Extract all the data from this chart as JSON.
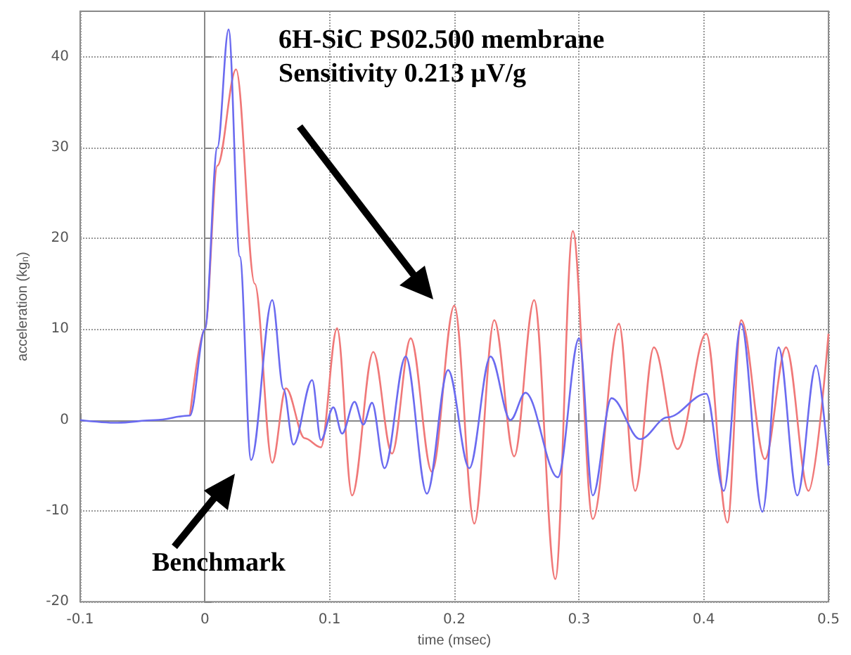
{
  "chart_data": {
    "type": "line",
    "xlabel": "time (msec)",
    "ylabel": "acceleration (kg$_{n}$)",
    "annotations": [
      "6H-SiC PS02.500 membrane",
      "Sensitivity 0.213 μV/g",
      "Benchmark"
    ],
    "xlim": [
      -0.1,
      0.5
    ],
    "xticks": [
      -0.1,
      0,
      0.1,
      0.2,
      0.3,
      0.4,
      0.5
    ],
    "ylim": [
      -20,
      45
    ],
    "yticks": [
      -20,
      -10,
      0,
      10,
      20,
      30,
      40
    ],
    "grid": true,
    "line_style": "solid",
    "marker": "none",
    "series": [
      {
        "color": "#f07878",
        "x": [
          -0.012,
          0,
          0.01,
          0.025,
          0.04,
          0.054,
          0.065,
          0.08,
          0.093,
          0.106,
          0.118,
          0.135,
          0.15,
          0.165,
          0.182,
          0.2,
          0.216,
          0.232,
          0.248,
          0.264,
          0.281,
          0.295,
          0.311,
          0.332,
          0.345,
          0.36,
          0.379,
          0.402,
          0.419,
          0.43,
          0.449,
          0.466,
          0.484,
          0.5
        ],
        "values": [
          0.5,
          10,
          28,
          38.6,
          15,
          -4.7,
          3.5,
          -2,
          -3,
          10.1,
          -8.3,
          7.5,
          -3.7,
          9,
          -5.7,
          12.6,
          -11.4,
          11,
          -4,
          13.2,
          -17.5,
          20.8,
          -10.9,
          10.6,
          -7.8,
          8,
          -3.2,
          9.5,
          -11.3,
          11,
          -4.3,
          8,
          -7.8,
          9.5
        ]
      },
      {
        "color": "#6b6bf0",
        "x": [
          -0.1,
          -0.07,
          -0.04,
          -0.012,
          0,
          0.01,
          0.019,
          0.028,
          0.037,
          0.054,
          0.063,
          0.071,
          0.086,
          0.093,
          0.103,
          0.11,
          0.12,
          0.127,
          0.134,
          0.144,
          0.161,
          0.178,
          0.195,
          0.212,
          0.229,
          0.245,
          0.257,
          0.283,
          0.3,
          0.311,
          0.326,
          0.349,
          0.371,
          0.402,
          0.416,
          0.43,
          0.447,
          0.46,
          0.475,
          0.49,
          0.5
        ],
        "values": [
          0,
          -0.3,
          0,
          0.5,
          10,
          30,
          43,
          18,
          -4.4,
          13.2,
          3.4,
          -2.7,
          4.4,
          -2.2,
          1.4,
          -1.5,
          2,
          -0.5,
          1.9,
          -5.3,
          7,
          -8.1,
          5.5,
          -5.3,
          7,
          0,
          3,
          -6.3,
          9,
          -8.3,
          2.4,
          -2.1,
          0.3,
          2.9,
          -7.8,
          10.6,
          -10.1,
          8,
          -8.3,
          6,
          -5
        ]
      }
    ]
  }
}
